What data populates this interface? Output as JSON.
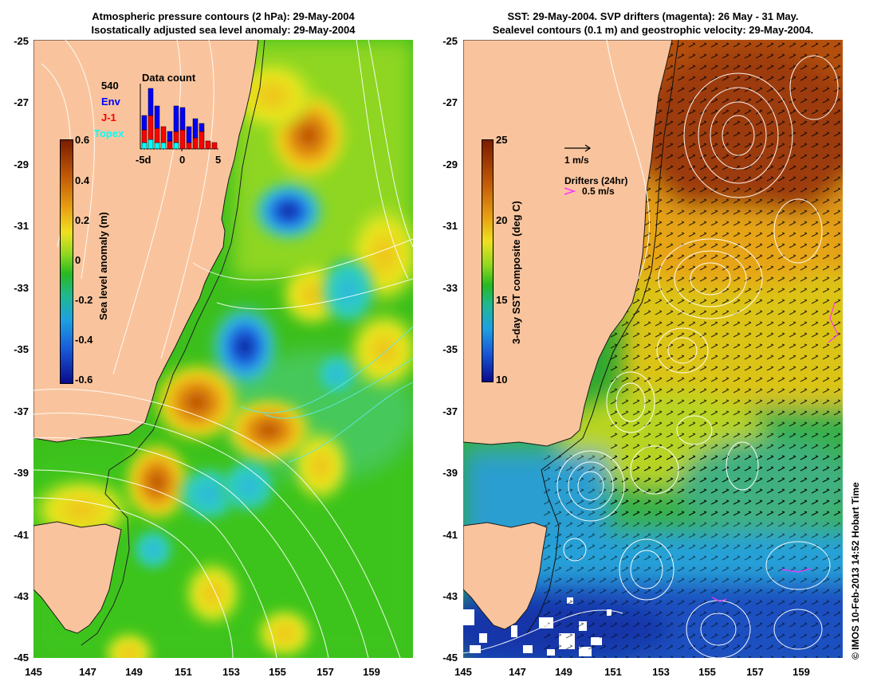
{
  "left_panel": {
    "title_line1": "Atmospheric pressure contours (2 hPa): 29-May-2004",
    "title_line2": "Isostatically adjusted sea level anomaly: 29-May-2004",
    "colorbar": {
      "label": "Sea level anomaly (m)",
      "ticks": [
        "0.6",
        "0.4",
        "0.2",
        "0",
        "-0.2",
        "-0.4",
        "-0.6"
      ]
    },
    "inset": {
      "title": "Data count",
      "total": "540",
      "series": [
        {
          "name": "Env",
          "color": "#0000ff"
        },
        {
          "name": "J-1",
          "color": "#ff0000"
        },
        {
          "name": "Topex",
          "color": "#00ffff"
        }
      ],
      "x_ticks": [
        "-5d",
        "0",
        "5"
      ]
    }
  },
  "right_panel": {
    "title_line1": "SST: 29-May-2004. SVP drifters (magenta): 26 May - 31 May.",
    "title_line2": "Sealevel contours (0.1 m) and geostrophic velocity: 29-May-2004.",
    "colorbar": {
      "label": "3-day SST composite (deg C)",
      "ticks": [
        "25",
        "20",
        "15",
        "10"
      ]
    },
    "velocity_legend": "1 m/s",
    "drifters_legend_title": "Drifters (24hr)",
    "drifters_legend_value": "0.5 m/s"
  },
  "axes": {
    "lat_ticks": [
      "-25",
      "-27",
      "-29",
      "-31",
      "-33",
      "-35",
      "-37",
      "-39",
      "-41",
      "-43",
      "-45"
    ],
    "lon_ticks": [
      "145",
      "147",
      "149",
      "151",
      "153",
      "155",
      "157",
      "159"
    ]
  },
  "credit": "© IMOS 10-Feb-2013 14:52 Hobart Time",
  "colors": {
    "land": "#f9c49d",
    "sla_low": "#00008b",
    "sla_high": "#8b1a00",
    "sst_low": "#00007f",
    "sst_high": "#8b2500"
  }
}
